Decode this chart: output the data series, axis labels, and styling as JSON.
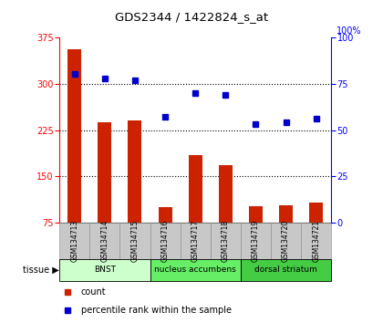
{
  "title": "GDS2344 / 1422824_s_at",
  "samples": [
    "GSM134713",
    "GSM134714",
    "GSM134715",
    "GSM134716",
    "GSM134717",
    "GSM134718",
    "GSM134719",
    "GSM134720",
    "GSM134721"
  ],
  "counts": [
    355,
    238,
    240,
    100,
    185,
    168,
    102,
    104,
    108
  ],
  "percentiles": [
    80,
    78,
    77,
    57,
    70,
    69,
    53,
    54,
    56
  ],
  "ylim_left": [
    75,
    375
  ],
  "yticks_left": [
    75,
    150,
    225,
    300,
    375
  ],
  "ylim_right": [
    0,
    100
  ],
  "yticks_right": [
    0,
    25,
    50,
    75,
    100
  ],
  "bar_color": "#cc2200",
  "dot_color": "#0000cc",
  "tissue_groups": [
    {
      "label": "BNST",
      "indices": [
        0,
        1,
        2
      ],
      "color": "#ccffcc"
    },
    {
      "label": "nucleus accumbens",
      "indices": [
        3,
        4,
        5
      ],
      "color": "#66ee66"
    },
    {
      "label": "dorsal striatum",
      "indices": [
        6,
        7,
        8
      ],
      "color": "#44cc44"
    }
  ],
  "tissue_label": "tissue",
  "legend_count_label": "count",
  "legend_pct_label": "percentile rank within the sample",
  "bg_color": "#ffffff",
  "plot_bg_color": "#ffffff",
  "sample_bg_color": "#c8c8c8",
  "grid_dotted_vals": [
    150,
    225,
    300
  ]
}
